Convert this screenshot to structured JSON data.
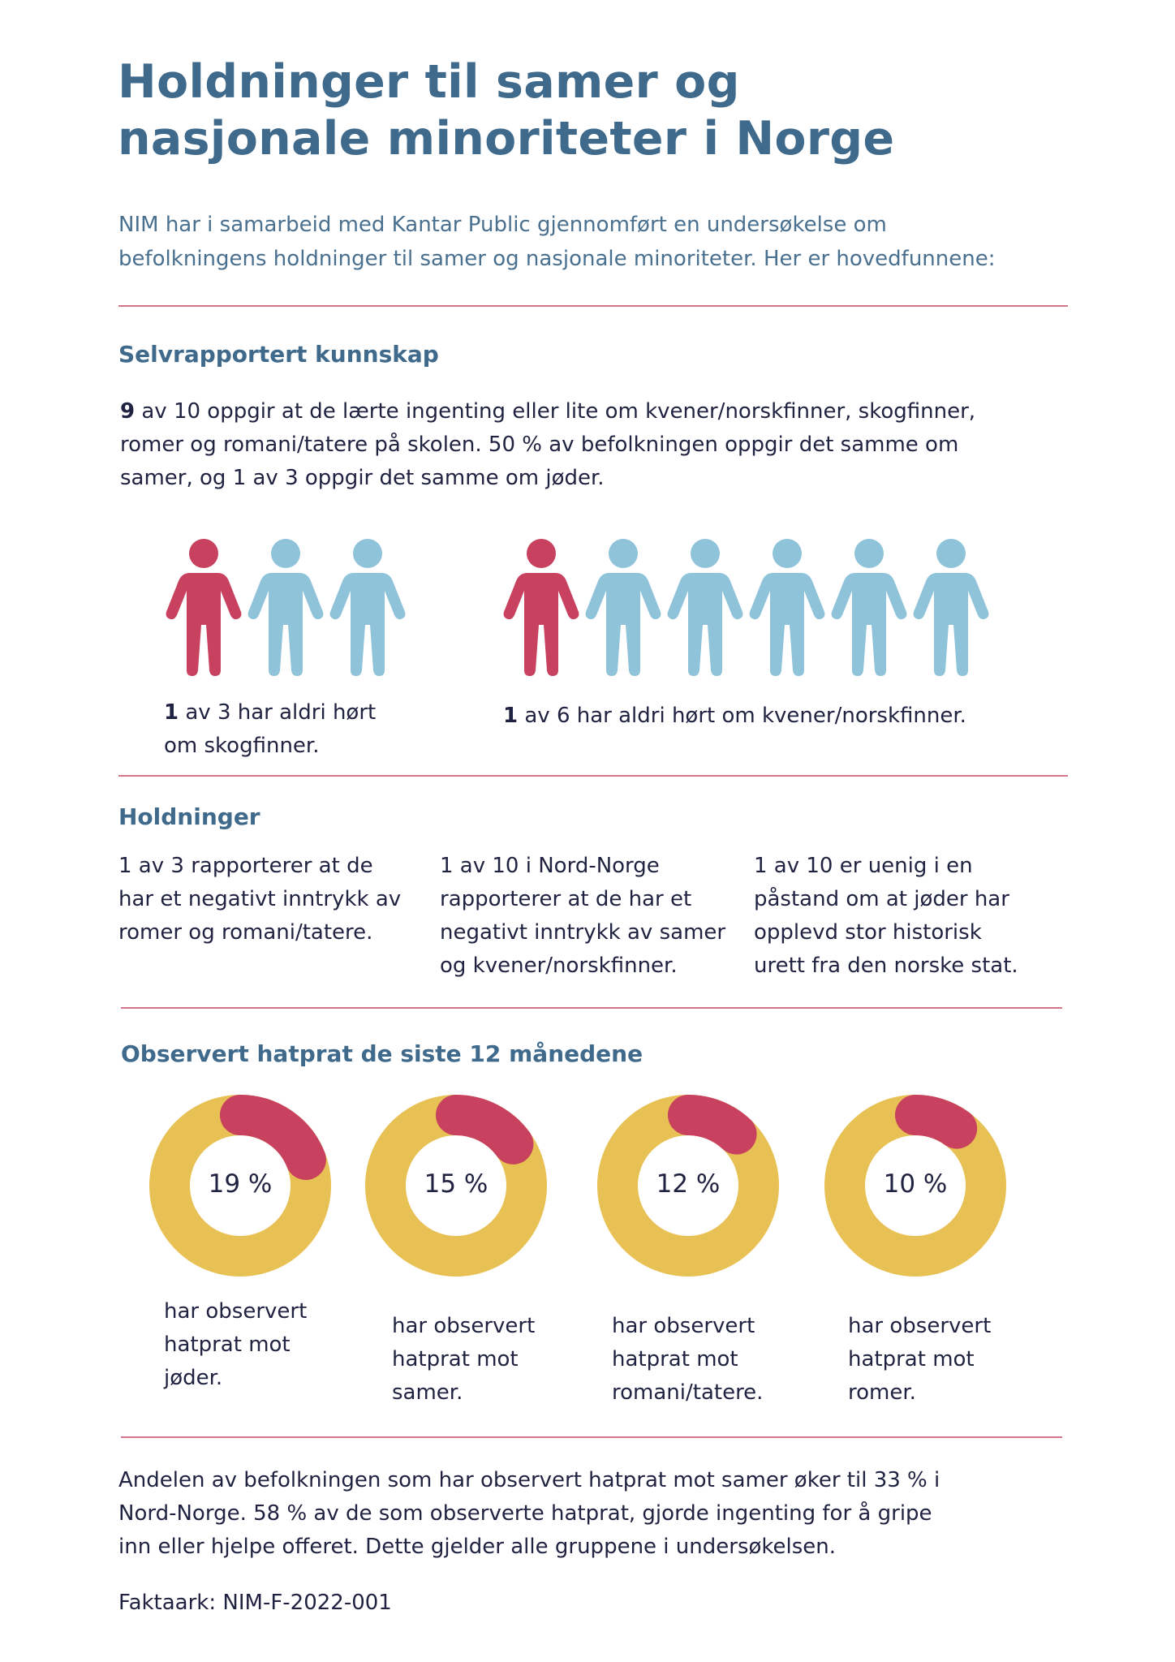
{
  "title": {
    "line1": "Holdninger til samer og",
    "line2": "nasjonale minoriteter i Norge"
  },
  "intro": {
    "line1": "NIM har i samarbeid med Kantar Public gjennomført en undersøkelse om",
    "line2": "befolkningens holdninger til samer og nasjonale minoriteter. Her er hovedfunnene:"
  },
  "knowledge": {
    "heading": "Selvrapportert kunnskap",
    "lead_number": "9",
    "line1_rest": " av 10 oppgir at de lærte ingenting eller lite om kvener/norskfinner, skogfinner,",
    "line2": "romer og romani/tatere på skolen. 50 % av befolkningen oppgir det samme om",
    "line3": "samer, og 1 av 3 oppgir det samme om jøder.",
    "group1": {
      "fraction": [
        1,
        3
      ],
      "number": "1",
      "line1_rest": " av 3 har aldri hørt",
      "line2": "om skogfinner."
    },
    "group2": {
      "fraction": [
        1,
        6
      ],
      "number": "1",
      "line1_rest": " av 6 har aldri hørt om kvener/norskfinner."
    }
  },
  "attitudes": {
    "heading": "Holdninger",
    "col1": [
      "1 av 3 rapporterer at de",
      "har et negativt inntrykk av",
      "romer og romani/tatere."
    ],
    "col2": [
      "1  av 10 i Nord-Norge",
      "rapporterer at de har et",
      "negativt inntrykk av samer",
      "og kvener/norskfinner."
    ],
    "col3": [
      "1 av 10 er uenig i en",
      "påstand om at jøder har",
      "opplevd stor historisk",
      "urett fra den norske stat."
    ]
  },
  "hate_speech": {
    "heading": "Observert hatprat de siste 12 månedene",
    "donuts": [
      {
        "label": "19 %",
        "value": 19,
        "caption": [
          "har observert",
          "hatprat mot",
          "jøder."
        ]
      },
      {
        "label": "15 %",
        "value": 15,
        "caption": [
          "har observert",
          "hatprat mot",
          "samer."
        ]
      },
      {
        "label": "12 %",
        "value": 12,
        "caption": [
          "har observert",
          "hatprat mot",
          "romani/tatere."
        ]
      },
      {
        "label": "10 %",
        "value": 10,
        "caption": [
          "har observert",
          "hatprat mot",
          "romer."
        ]
      }
    ]
  },
  "conclusion": {
    "line1": "Andelen av befolkningen som har observert hatprat mot samer øker til 33 % i",
    "line2": "Nord-Norge. 58 % av de som observerte hatprat, gjorde ingenting for å gripe",
    "line3": "inn eller hjelpe offeret. Dette gjelder alle gruppene i undersøkelsen."
  },
  "footer": {
    "factsheet": "Faktaark: NIM-F-2022-001"
  },
  "colors": {
    "heading_blue": "#3f6a8c",
    "highlight_red": "#c8415e",
    "person_blue": "#8fc3da",
    "donut_yellow": "#e8c155",
    "rule_pink": "#d27589",
    "text_dark": "#1f2240"
  }
}
